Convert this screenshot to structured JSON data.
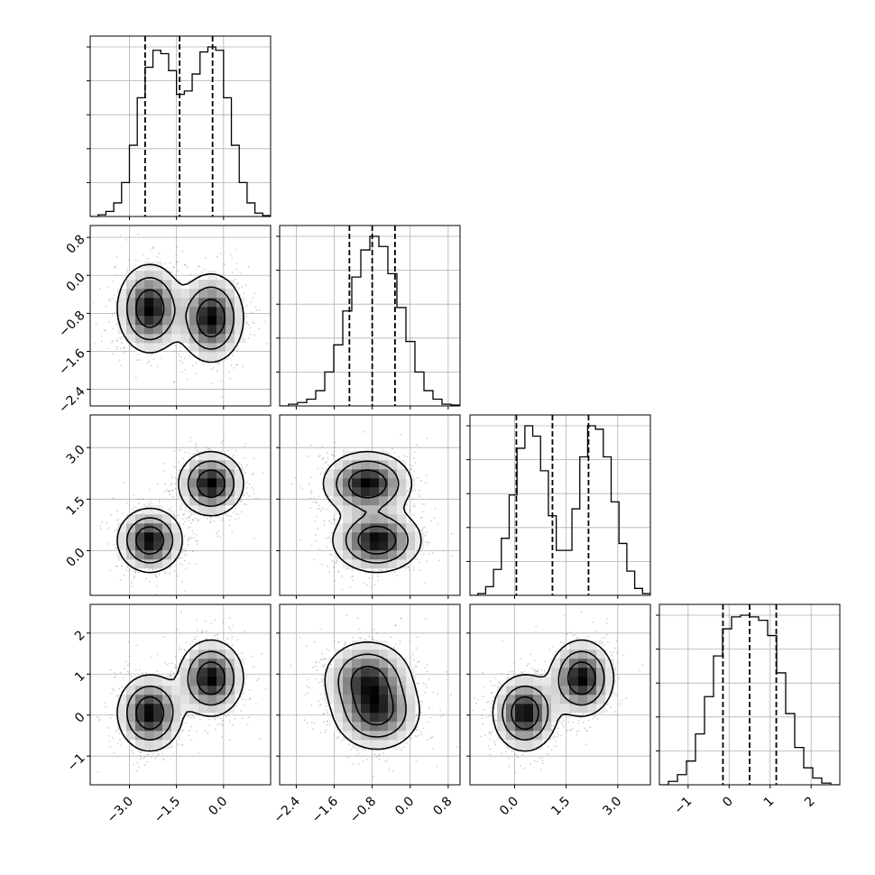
{
  "chart_data": {
    "type": "corner",
    "grid": true,
    "params": [
      {
        "range": [
          -4.25,
          1.5
        ],
        "ticks": [
          -3.0,
          -1.5,
          0.0
        ],
        "tick_labels": [
          "−3.0",
          "−1.5",
          "0.0"
        ],
        "quantiles": [
          -2.5,
          -1.4,
          -0.35
        ],
        "hist": [
          0.0,
          0.01,
          0.03,
          0.08,
          0.2,
          0.42,
          0.7,
          0.88,
          0.98,
          0.96,
          0.86,
          0.72,
          0.74,
          0.84,
          0.97,
          1.0,
          0.98,
          0.7,
          0.42,
          0.2,
          0.08,
          0.02,
          0.005
        ]
      },
      {
        "range": [
          -2.75,
          1.05
        ],
        "ticks": [
          -2.4,
          -1.6,
          -0.8,
          0.0,
          0.8
        ],
        "tick_labels": [
          "−2.4",
          "−1.6",
          "−0.8",
          "0.0",
          "0.8"
        ],
        "quantiles": [
          -1.28,
          -0.8,
          -0.32
        ],
        "hist": [
          0.0,
          0.01,
          0.02,
          0.04,
          0.09,
          0.2,
          0.36,
          0.56,
          0.76,
          0.92,
          1.0,
          0.94,
          0.78,
          0.58,
          0.38,
          0.2,
          0.09,
          0.04,
          0.01,
          0.005
        ]
      },
      {
        "range": [
          -1.3,
          3.95
        ],
        "ticks": [
          0.0,
          1.5,
          3.0
        ],
        "tick_labels": [
          "0.0",
          "1.5",
          "3.0"
        ],
        "quantiles": [
          0.05,
          1.1,
          2.15
        ],
        "hist": [
          0.0,
          0.01,
          0.05,
          0.15,
          0.33,
          0.58,
          0.85,
          0.98,
          0.92,
          0.72,
          0.46,
          0.26,
          0.26,
          0.5,
          0.8,
          0.98,
          0.96,
          0.8,
          0.54,
          0.3,
          0.14,
          0.04,
          0.01
        ]
      },
      {
        "range": [
          -1.7,
          2.7
        ],
        "ticks": [
          -1,
          0,
          1,
          2
        ],
        "tick_labels": [
          "−1",
          "0",
          "1",
          "2"
        ],
        "quantiles": [
          -0.15,
          0.5,
          1.15
        ],
        "hist": [
          0.0,
          0.02,
          0.06,
          0.14,
          0.3,
          0.52,
          0.76,
          0.92,
          0.99,
          1.0,
          0.99,
          0.97,
          0.88,
          0.66,
          0.42,
          0.22,
          0.1,
          0.04,
          0.01,
          0.0
        ]
      }
    ],
    "mixture": {
      "components": [
        {
          "weight": 0.5,
          "mean": [
            -2.35,
            -0.7,
            0.3,
            0.05
          ],
          "sd": [
            0.5,
            0.45,
            0.45,
            0.45
          ]
        },
        {
          "weight": 0.5,
          "mean": [
            -0.4,
            -0.9,
            1.95,
            0.9
          ],
          "sd": [
            0.5,
            0.45,
            0.45,
            0.45
          ]
        }
      ]
    },
    "contour_levels": [
      0.12,
      0.35,
      0.68
    ]
  }
}
